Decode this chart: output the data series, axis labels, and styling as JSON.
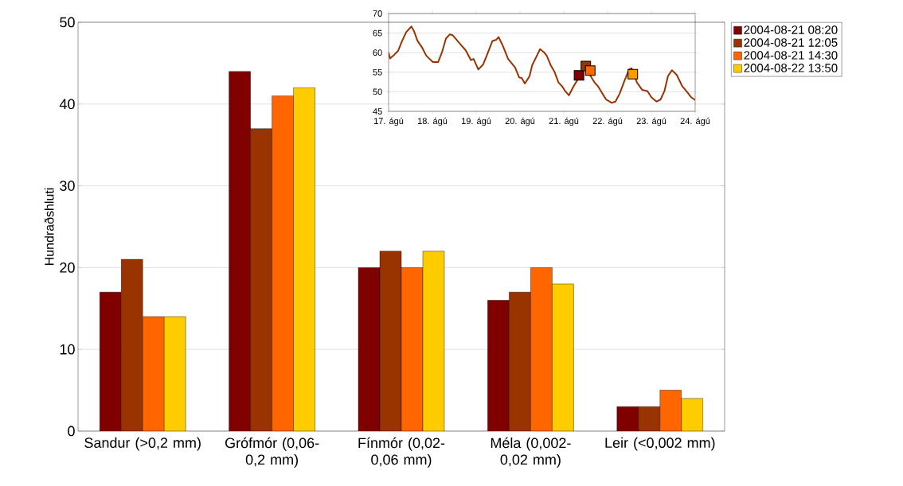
{
  "chart_data": [
    {
      "type": "bar",
      "ylabel": "Hundraðshluti",
      "categories": [
        "Sandur (>0,2 mm)",
        "Grófmór (0,06-0,2 mm)",
        "Fínmór (0,02-0,06 mm)",
        "Méla (0,002-0,02 mm)",
        "Leir (<0,002 mm)"
      ],
      "series": [
        {
          "name": "2004-08-21 08:20",
          "color": "#800000",
          "values": [
            17,
            44,
            20,
            16,
            3
          ]
        },
        {
          "name": "2004-08-21 12:05",
          "color": "#993300",
          "values": [
            21,
            37,
            22,
            17,
            3
          ]
        },
        {
          "name": "2004-08-21 14:30",
          "color": "#ff6600",
          "values": [
            14,
            41,
            20,
            20,
            5
          ]
        },
        {
          "name": "2004-08-22 13:50",
          "color": "#ffcc00",
          "values": [
            14,
            42,
            22,
            18,
            4
          ]
        }
      ],
      "ylim": [
        0,
        50
      ],
      "yticks": [
        0,
        10,
        20,
        30,
        40,
        50
      ],
      "grid": "y",
      "legend": "right"
    },
    {
      "type": "line",
      "series": [
        {
          "type": "line",
          "color": "#993300",
          "x": [
            "2004-08-17T00:00",
            "2004-08-17T00:45",
            "2004-08-17T03:10",
            "2004-08-17T05:15",
            "2004-08-17T07:25",
            "2004-08-17T09:35",
            "2004-08-17T12:30",
            "2004-08-17T13:55",
            "2004-08-17T15:50",
            "2004-08-17T18:15",
            "2004-08-17T20:40",
            "2004-08-18T00:15",
            "2004-08-18T03:10",
            "2004-08-18T05:15",
            "2004-08-18T07:25",
            "2004-08-18T09:35",
            "2004-08-18T11:15",
            "2004-08-18T14:40",
            "2004-08-18T18:15",
            "2004-08-18T21:05",
            "2004-08-18T22:35",
            "2004-08-19T01:10",
            "2004-08-19T03:50",
            "2004-08-19T06:00",
            "2004-08-19T08:55",
            "2004-08-19T11:00",
            "2004-08-19T12:15",
            "2004-08-19T14:40",
            "2004-08-19T17:30",
            "2004-08-19T21:20",
            "2004-08-19T23:30",
            "2004-08-20T01:00",
            "2004-08-20T02:40",
            "2004-08-20T05:15",
            "2004-08-20T06:40",
            "2004-08-20T08:55",
            "2004-08-20T11:00",
            "2004-08-20T13:10",
            "2004-08-20T14:40",
            "2004-08-20T16:50",
            "2004-08-20T18:55",
            "2004-08-20T21:05",
            "2004-08-20T23:15",
            "2004-08-21T00:45",
            "2004-08-21T02:50",
            "2004-08-21T05:15",
            "2004-08-21T07:25",
            "2004-08-21T09:35",
            "2004-08-21T11:45",
            "2004-08-21T13:55",
            "2004-08-21T16:50",
            "2004-08-21T18:55",
            "2004-08-21T21:05",
            "2004-08-21T23:15",
            "2004-08-22T02:10",
            "2004-08-22T04:20",
            "2004-08-22T06:40",
            "2004-08-22T08:55",
            "2004-08-22T11:45",
            "2004-08-22T13:10",
            "2004-08-22T16:05",
            "2004-08-22T18:55",
            "2004-08-22T21:50",
            "2004-08-23T00:00",
            "2004-08-23T02:50",
            "2004-08-23T05:00",
            "2004-08-23T07:10",
            "2004-08-23T09:05",
            "2004-08-23T11:15",
            "2004-08-23T13:55",
            "2004-08-23T16:50",
            "2004-08-23T19:40",
            "2004-08-23T21:50",
            "2004-08-24T00:00"
          ],
          "values": [
            60.0,
            58.5,
            59.5,
            60.5,
            63.0,
            65.2,
            66.7,
            65.5,
            63.0,
            61.4,
            59.2,
            57.6,
            57.6,
            60.1,
            63.6,
            64.7,
            64.4,
            62.5,
            60.6,
            58.1,
            58.4,
            55.7,
            57.0,
            59.5,
            63.0,
            63.3,
            64.0,
            61.7,
            58.4,
            56.2,
            53.7,
            53.5,
            52.1,
            54.0,
            56.8,
            58.9,
            60.9,
            60.1,
            59.2,
            56.8,
            55.1,
            52.4,
            51.3,
            50.2,
            49.1,
            51.3,
            53.0,
            55.1,
            56.8,
            54.6,
            52.4,
            51.3,
            49.6,
            48.0,
            47.2,
            47.5,
            49.6,
            52.4,
            55.7,
            56.0,
            52.4,
            50.5,
            50.2,
            48.6,
            47.5,
            48.0,
            50.2,
            54.0,
            55.5,
            54.3,
            51.5,
            49.9,
            48.6,
            47.9
          ]
        },
        {
          "type": "scatter",
          "marker": "square",
          "color": "#800000",
          "x": [
            "2004-08-21T08:20"
          ],
          "values": [
            54.2
          ]
        },
        {
          "type": "scatter",
          "marker": "square",
          "color": "#993300",
          "x": [
            "2004-08-21T12:05"
          ],
          "values": [
            56.6
          ]
        },
        {
          "type": "scatter",
          "marker": "square",
          "color": "#ff6600",
          "x": [
            "2004-08-21T14:30"
          ],
          "values": [
            55.4
          ]
        },
        {
          "type": "scatter",
          "marker": "square",
          "color": "#ff9900",
          "x": [
            "2004-08-22T13:50"
          ],
          "values": [
            54.5
          ]
        }
      ],
      "xlim": [
        "2004-08-17",
        "2004-08-24"
      ],
      "xticks": [
        {
          "value": "2004-08-17",
          "label": "17. ágú"
        },
        {
          "value": "2004-08-18",
          "label": "18. ágú"
        },
        {
          "value": "2004-08-19",
          "label": "19. ágú"
        },
        {
          "value": "2004-08-20",
          "label": "20. ágú"
        },
        {
          "value": "2004-08-21",
          "label": "21. ágú"
        },
        {
          "value": "2004-08-22",
          "label": "22. ágú"
        },
        {
          "value": "2004-08-23",
          "label": "23. ágú"
        },
        {
          "value": "2004-08-24",
          "label": "24. ágú"
        }
      ],
      "ylim": [
        45,
        70
      ],
      "yticks": [
        45,
        50,
        55,
        60,
        65,
        70
      ],
      "grid": "y"
    }
  ]
}
